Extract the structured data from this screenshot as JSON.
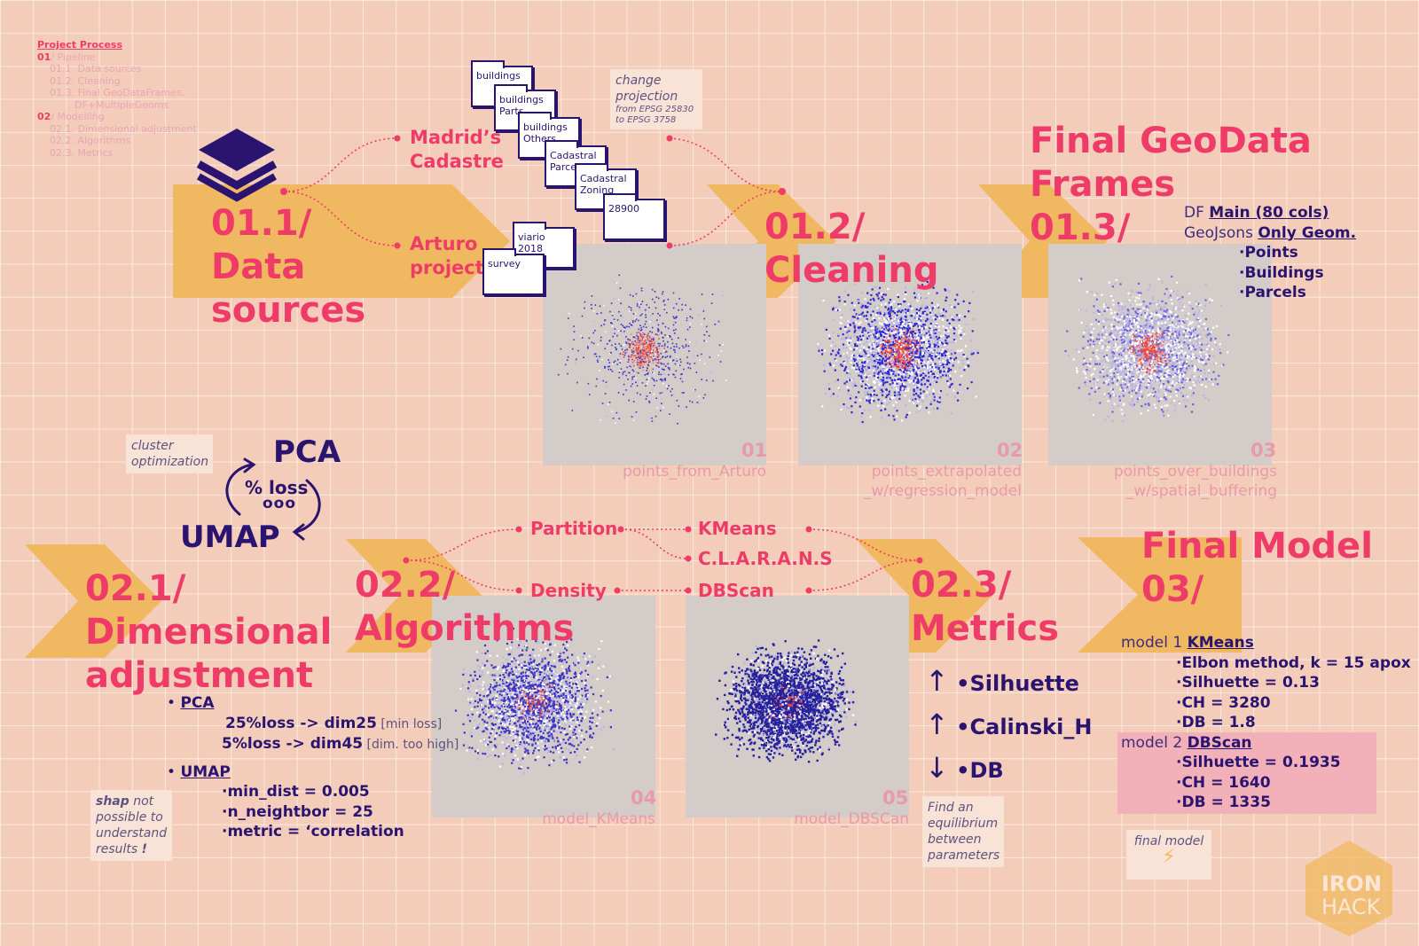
{
  "toc": {
    "title": "Project Process",
    "items": [
      {
        "num": "01",
        "text": "/ Pipeline"
      },
      {
        "num": "",
        "text": "01.1. Data sources"
      },
      {
        "num": "",
        "text": "01.2. Cleaning"
      },
      {
        "num": "",
        "text": "01.3. Final GeoDataFrames,"
      },
      {
        "num": "",
        "text": "DF+MultipleGeoms"
      },
      {
        "num": "02",
        "text": "/ Modelling"
      },
      {
        "num": "",
        "text": "02.1. Dimensional adjustment"
      },
      {
        "num": "",
        "text": "02.2. Algorithms"
      },
      {
        "num": "",
        "text": "02.3. Metrics"
      }
    ]
  },
  "stages": {
    "s011": {
      "num": "01.1/",
      "l1": "Data",
      "l2": "sources"
    },
    "s012": {
      "num": "01.2/",
      "l1": "Cleaning"
    },
    "s013": {
      "head1": "Final GeoData",
      "head2": "Frames",
      "num": "01.3/"
    },
    "s021": {
      "num": "02.1/",
      "l1": "Dimensional",
      "l2": "adjustment"
    },
    "s022": {
      "num": "02.2/",
      "l1": "Algorithms"
    },
    "s023": {
      "num": "02.3/",
      "l1": "Metrics"
    },
    "s03": {
      "head": "Final Model",
      "num": "03/"
    }
  },
  "sources": {
    "madrid1": "Madrid’s",
    "madrid2": "Cadastre",
    "arturo1": "Arturo",
    "arturo2": "project"
  },
  "folders": [
    "buildings",
    "buildings Parts",
    "buildings Others",
    "Cadastral Parcels",
    "Cadastral Zoning",
    "28900",
    "viario 2018",
    "survey"
  ],
  "notes": {
    "projection1": "change",
    "projection2": "projection",
    "projection3": "from EPSG 25830",
    "projection4": "to  EPSG 3758",
    "cluster1": "cluster",
    "cluster2": "optimization",
    "shap1": "shap",
    "shap2": " not",
    "shap3": "possible to",
    "shap4": "understand",
    "shap5": "results ",
    "shap6": "!",
    "equil1": "Find an",
    "equil2": "equilibrium",
    "equil3": "between",
    "equil4": "parameters",
    "final": "final model"
  },
  "dataframes": {
    "df_prefix": "DF ",
    "df_value": "Main  (80 cols)",
    "gj_prefix": "GeoJsons ",
    "gj_value": "Only Geom.",
    "items": [
      "·Points",
      "·Buildings",
      "·Parcels"
    ]
  },
  "maps": [
    {
      "num": "01",
      "label1": "points_from_Arturo",
      "label2": ""
    },
    {
      "num": "02",
      "label1": "points_extrapolated",
      "label2": "_w/regression_model"
    },
    {
      "num": "03",
      "label1": "points_over_buildings",
      "label2": "_w/spatial_buffering"
    },
    {
      "num": "04",
      "label1": "model_KMeans",
      "label2": ""
    },
    {
      "num": "05",
      "label1": "model_DBSCan",
      "label2": ""
    }
  ],
  "cycle": {
    "top": "PCA",
    "middle": "% loss",
    "dots": "ooo",
    "bottom": "UMAP"
  },
  "algorithms": {
    "partition": "Partition",
    "density": "Density",
    "kmeans": "KMeans",
    "clarans": "C.L.A.R.A.N.S",
    "dbscan": "DBScan"
  },
  "dimensional": {
    "pca_label": "PCA",
    "pca_l1": "25%loss -> dim25",
    "pca_l1_note": " [min loss]",
    "pca_l2": "5%loss -> dim45",
    "pca_l2_note": " [dim. too high]",
    "umap_label": "UMAP",
    "umap_items": [
      "·min_dist = 0.005",
      "·n_neightbor = 25",
      "·metric = ‘correlation"
    ]
  },
  "metrics": [
    {
      "arrow": "↑",
      "name": "•Silhuette"
    },
    {
      "arrow": "↑",
      "name": "•Calinski_H"
    },
    {
      "arrow": "↓",
      "name": "•DB"
    }
  ],
  "final_model": {
    "m1_prefix": "model 1 ",
    "m1_name": "KMeans",
    "m1_items": [
      "·Elbon method, k = 15 apox",
      "·Silhuette = 0.13",
      "·CH = 3280",
      "·DB = 1.8"
    ],
    "m2_prefix": "model 2 ",
    "m2_name": "DBScan",
    "m2_items": [
      "·Silhuette = 0.1935",
      "·CH = 1640",
      "·DB = 1335"
    ]
  },
  "logo": {
    "l1": "IRON",
    "l2": "HACK"
  },
  "colors": {
    "pink": "#ee3b68",
    "navy": "#2a1470",
    "orange": "#f0b860",
    "background": "#f3cdb9",
    "map_grey": "#d4ccc8",
    "highlight": "#f2b0b8"
  }
}
